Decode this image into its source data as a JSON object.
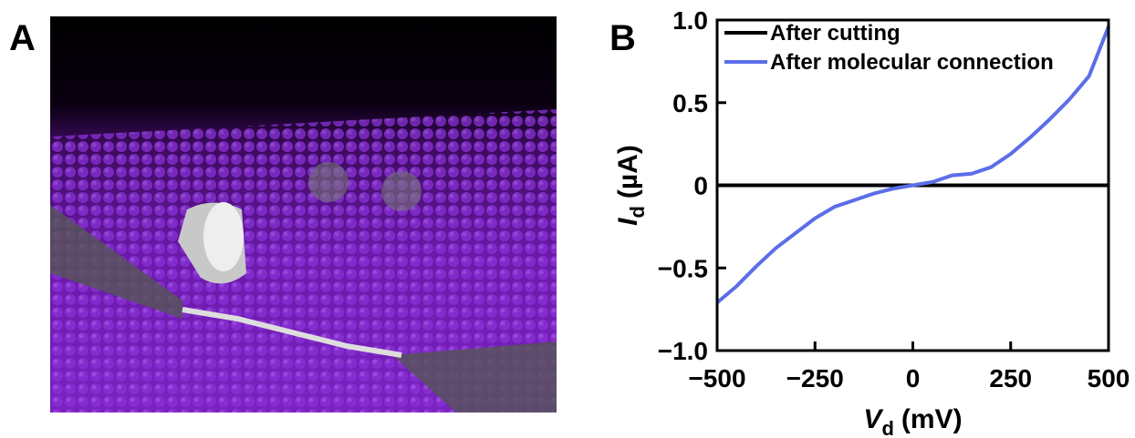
{
  "panels": [
    {
      "label": "A"
    },
    {
      "label": "B"
    }
  ],
  "chart_data": {
    "type": "line",
    "x": [
      -500,
      -450,
      -400,
      -350,
      -300,
      -250,
      -200,
      -150,
      -100,
      -50,
      0,
      50,
      100,
      150,
      200,
      250,
      300,
      350,
      400,
      450,
      500
    ],
    "series": [
      {
        "name": "After cutting",
        "color": "#000000",
        "values": [
          0,
          0,
          0,
          0,
          0,
          0,
          0,
          0,
          0,
          0,
          0,
          0,
          0,
          0,
          0,
          0,
          0,
          0,
          0,
          0,
          0
        ]
      },
      {
        "name": "After molecular connection",
        "color": "#5b6ee8",
        "values": [
          -0.71,
          -0.61,
          -0.49,
          -0.38,
          -0.29,
          -0.2,
          -0.13,
          -0.09,
          -0.05,
          -0.02,
          0,
          0.02,
          0.06,
          0.07,
          0.11,
          0.19,
          0.29,
          0.4,
          0.52,
          0.66,
          0.96
        ]
      }
    ],
    "xlim": [
      -500,
      500
    ],
    "ylim": [
      -1,
      1
    ],
    "xticks": [
      {
        "value": -500,
        "label": "−500"
      },
      {
        "value": -250,
        "label": "−250"
      },
      0,
      250,
      500
    ],
    "yticks": [
      {
        "value": -1,
        "label": "−1.0"
      },
      {
        "value": -0.5,
        "label": "−0.5"
      },
      0,
      0.5,
      {
        "value": 1,
        "label": "1.0"
      }
    ],
    "x_label": {
      "symbol": "V",
      "subscript": "d",
      "unit": "(mV)"
    },
    "y_label": {
      "symbol": "I",
      "subscript": "d",
      "unit": "(µA)"
    },
    "legend": "upper left"
  }
}
